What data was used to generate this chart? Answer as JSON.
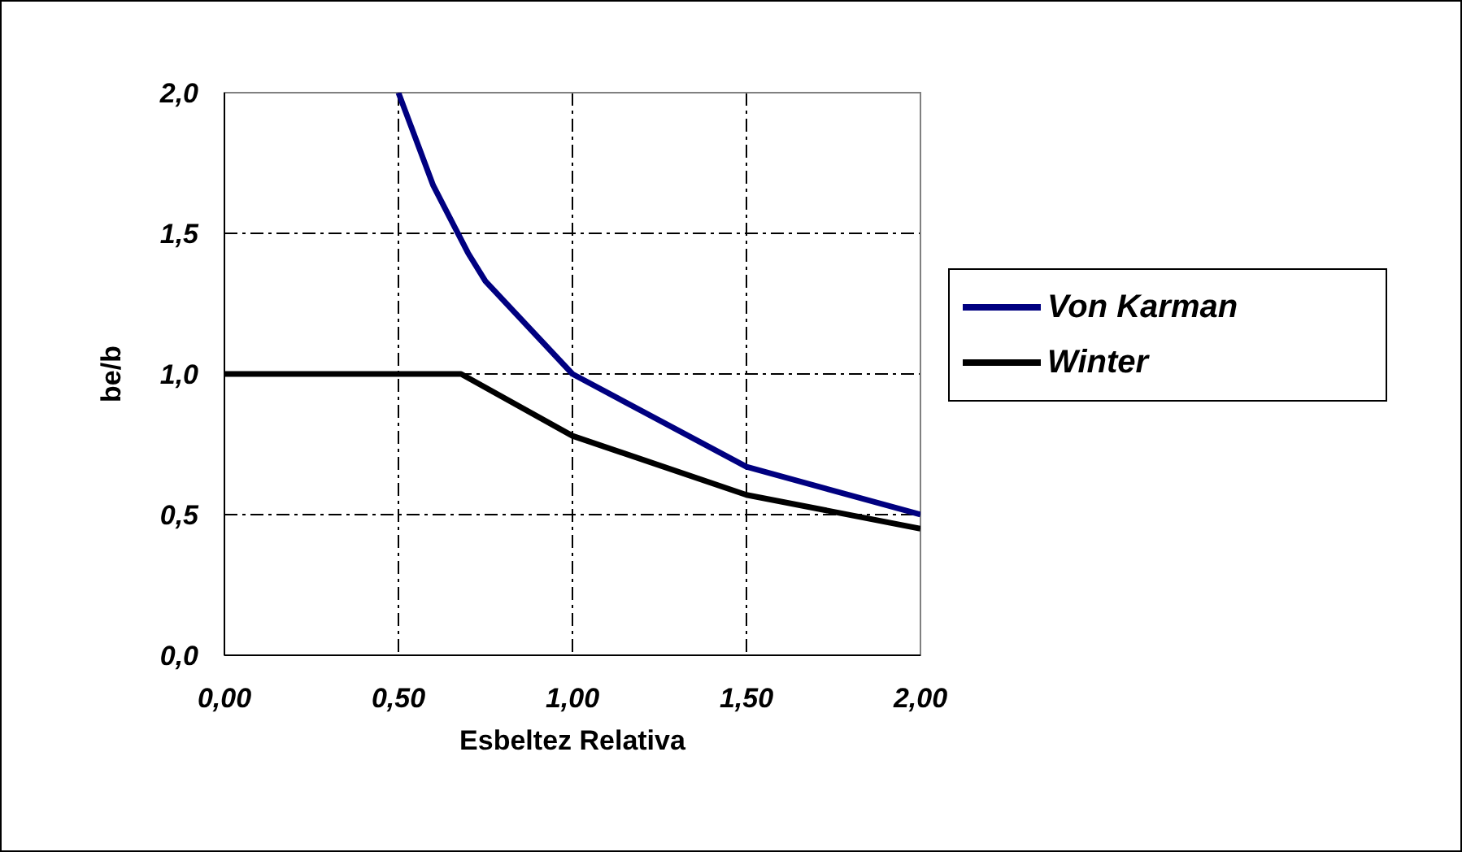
{
  "chart_data": {
    "type": "line",
    "xlabel": "Esbeltez Relativa",
    "ylabel": "be/b",
    "xlim": [
      0,
      2
    ],
    "xticks": [
      {
        "value": 0,
        "label": "0,00"
      },
      {
        "value": 0.5,
        "label": "0,50"
      },
      {
        "value": 1,
        "label": "1,00"
      },
      {
        "value": 1.5,
        "label": "1,50"
      },
      {
        "value": 2,
        "label": "2,00"
      }
    ],
    "ylim": [
      0,
      2
    ],
    "yticks": [
      {
        "value": 0,
        "label": "0,0"
      },
      {
        "value": 0.5,
        "label": "0,5"
      },
      {
        "value": 1,
        "label": "1,0"
      },
      {
        "value": 1.5,
        "label": "1,5"
      },
      {
        "value": 2,
        "label": "2,0"
      }
    ],
    "grid": true,
    "legend": "right",
    "marker": "none",
    "line_style": "solid",
    "series": [
      {
        "name": "Von Karman",
        "color": "#000080",
        "x": [
          0.5,
          0.6,
          0.7,
          0.75,
          1.0,
          1.5,
          2.0
        ],
        "values": [
          2.0,
          1.67,
          1.43,
          1.33,
          1.0,
          0.67,
          0.5
        ]
      },
      {
        "name": "Winter",
        "color": "#000000",
        "x": [
          0,
          0.5,
          0.68,
          1.0,
          1.5,
          2.0
        ],
        "values": [
          1.0,
          1.0,
          1.0,
          0.78,
          0.57,
          0.45
        ]
      }
    ]
  }
}
